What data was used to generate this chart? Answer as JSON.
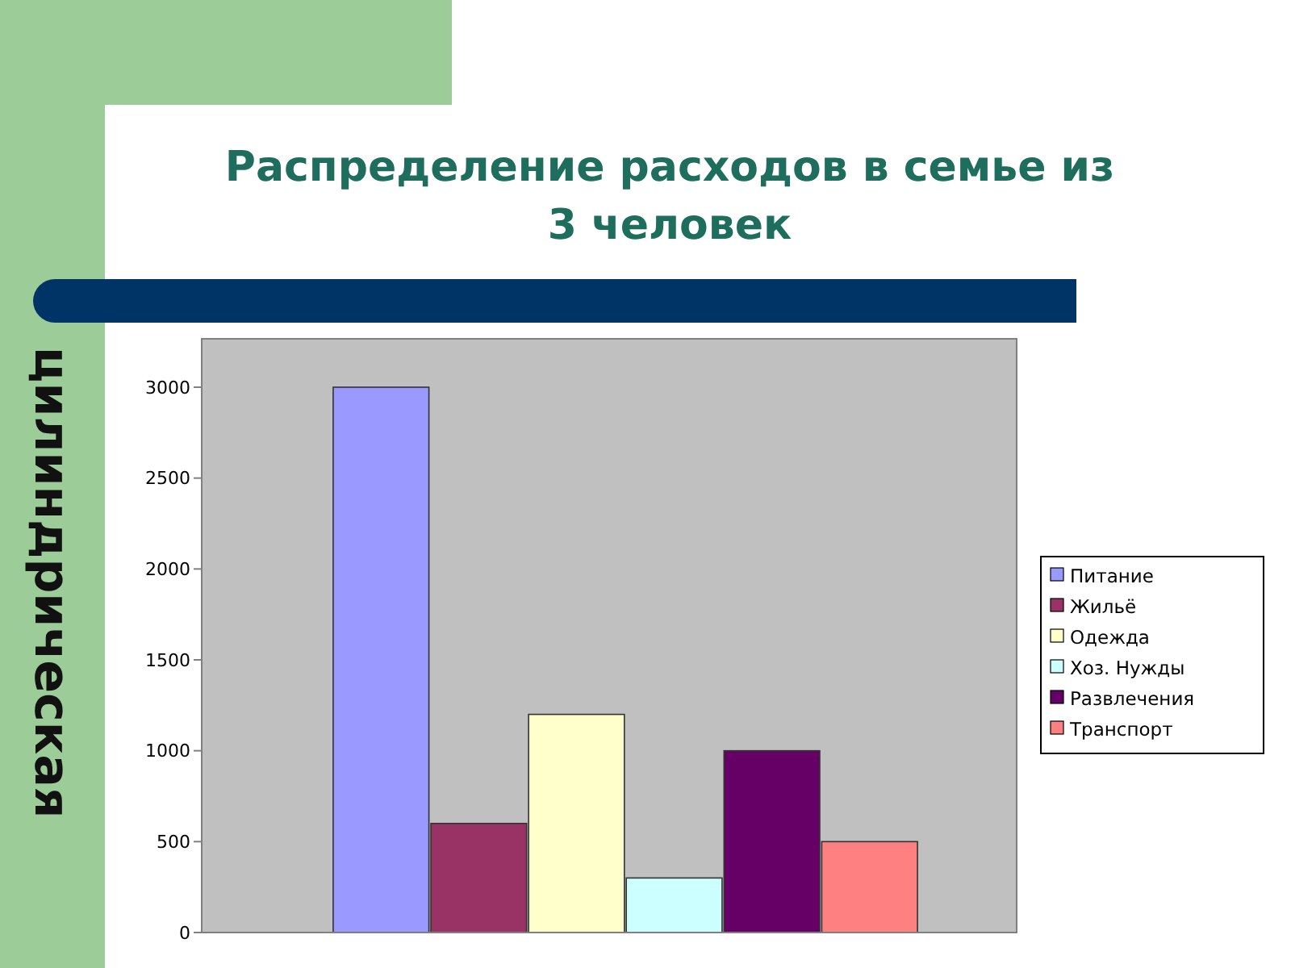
{
  "chart_data": {
    "type": "bar",
    "title": "Распределение расходов в семье из 3 человек",
    "annotations": [
      "цилиндрическая"
    ],
    "categories": [
      null
    ],
    "series": [
      {
        "name": "Питание",
        "color": "#9999ff",
        "values": [
          3000
        ]
      },
      {
        "name": "Жильё",
        "color": "#993366",
        "values": [
          600
        ]
      },
      {
        "name": "Одежда",
        "color": "#ffffcc",
        "values": [
          1200
        ]
      },
      {
        "name": "Хоз. Нужды",
        "color": "#ccffff",
        "values": [
          300
        ]
      },
      {
        "name": "Развлечения",
        "color": "#660066",
        "values": [
          1000
        ]
      },
      {
        "name": "Транспорт",
        "color": "#ff8080",
        "values": [
          500
        ]
      }
    ],
    "ylim": [
      0,
      3000
    ],
    "yticks": [
      0,
      500,
      1000,
      1500,
      2000,
      2500,
      3000
    ],
    "legend": "right"
  }
}
